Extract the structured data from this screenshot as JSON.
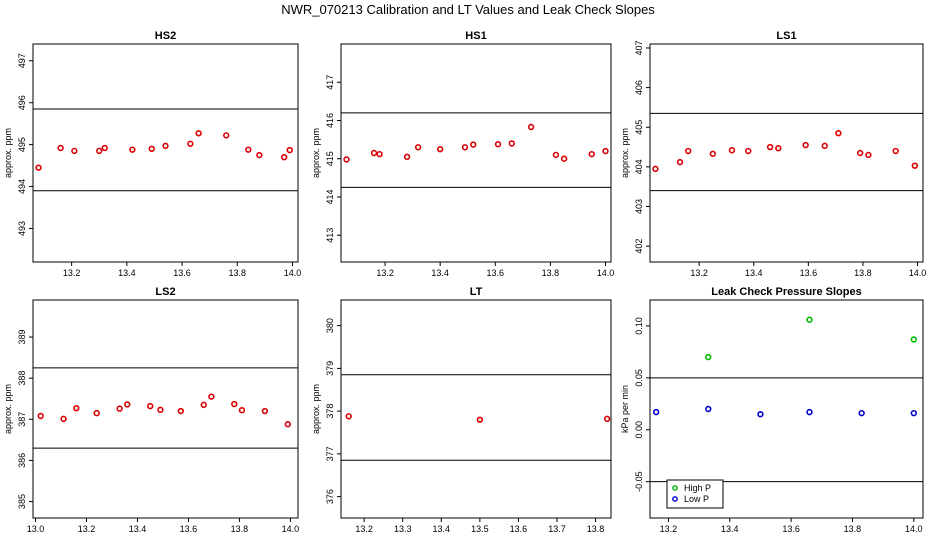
{
  "figure_title": "NWR_070213  Calibration and LT Values and Leak Check Slopes",
  "chart_data": [
    {
      "type": "scatter",
      "title": "HS2",
      "ylabel": "approx. ppm",
      "xlim": [
        13.06,
        14.02
      ],
      "ylim": [
        492.2,
        497.4
      ],
      "xticks": [
        13.2,
        13.4,
        13.6,
        13.8,
        14.0
      ],
      "xtick_labels": [
        "13.2",
        "13.4",
        "13.6",
        "13.8",
        "14.0"
      ],
      "yticks": [
        493,
        494,
        495,
        496,
        497
      ],
      "ytick_labels": [
        "493",
        "494",
        "495",
        "496",
        "497"
      ],
      "hlines": [
        495.85,
        493.9
      ],
      "series": [
        {
          "color": "#dd0000",
          "points": [
            [
              13.08,
              494.45
            ],
            [
              13.16,
              494.92
            ],
            [
              13.21,
              494.85
            ],
            [
              13.3,
              494.85
            ],
            [
              13.32,
              494.92
            ],
            [
              13.42,
              494.88
            ],
            [
              13.49,
              494.9
            ],
            [
              13.54,
              494.97
            ],
            [
              13.63,
              495.02
            ],
            [
              13.66,
              495.27
            ],
            [
              13.76,
              495.22
            ],
            [
              13.84,
              494.88
            ],
            [
              13.88,
              494.75
            ],
            [
              13.97,
              494.7
            ],
            [
              13.99,
              494.87
            ]
          ]
        }
      ]
    },
    {
      "type": "scatter",
      "title": "HS1",
      "ylabel": "approx. ppm",
      "xlim": [
        13.04,
        14.02
      ],
      "ylim": [
        412.3,
        418.0
      ],
      "xticks": [
        13.2,
        13.4,
        13.6,
        13.8,
        14.0
      ],
      "xtick_labels": [
        "13.2",
        "13.4",
        "13.6",
        "13.8",
        "14.0"
      ],
      "yticks": [
        413,
        414,
        415,
        416,
        417
      ],
      "ytick_labels": [
        "413",
        "414",
        "415",
        "416",
        "417"
      ],
      "hlines": [
        416.2,
        414.25
      ],
      "series": [
        {
          "color": "#dd0000",
          "points": [
            [
              13.06,
              414.98
            ],
            [
              13.16,
              415.15
            ],
            [
              13.18,
              415.12
            ],
            [
              13.28,
              415.05
            ],
            [
              13.32,
              415.3
            ],
            [
              13.4,
              415.25
            ],
            [
              13.49,
              415.3
            ],
            [
              13.52,
              415.37
            ],
            [
              13.61,
              415.38
            ],
            [
              13.66,
              415.4
            ],
            [
              13.73,
              415.83
            ],
            [
              13.82,
              415.1
            ],
            [
              13.85,
              415.0
            ],
            [
              13.95,
              415.12
            ],
            [
              14.0,
              415.2
            ]
          ]
        }
      ]
    },
    {
      "type": "scatter",
      "title": "LS1",
      "ylabel": "approx. ppm",
      "xlim": [
        13.02,
        14.02
      ],
      "ylim": [
        401.6,
        407.1
      ],
      "xticks": [
        13.2,
        13.4,
        13.6,
        13.8,
        14.0
      ],
      "xtick_labels": [
        "13.2",
        "13.4",
        "13.6",
        "13.8",
        "14.0"
      ],
      "yticks": [
        402,
        403,
        404,
        405,
        406,
        407
      ],
      "ytick_labels": [
        "402",
        "403",
        "404",
        "405",
        "406",
        "407"
      ],
      "hlines": [
        405.35,
        403.4
      ],
      "series": [
        {
          "color": "#dd0000",
          "points": [
            [
              13.04,
              403.95
            ],
            [
              13.13,
              404.12
            ],
            [
              13.16,
              404.4
            ],
            [
              13.25,
              404.33
            ],
            [
              13.32,
              404.42
            ],
            [
              13.38,
              404.4
            ],
            [
              13.46,
              404.5
            ],
            [
              13.49,
              404.47
            ],
            [
              13.59,
              404.55
            ],
            [
              13.66,
              404.53
            ],
            [
              13.71,
              404.85
            ],
            [
              13.79,
              404.35
            ],
            [
              13.82,
              404.3
            ],
            [
              13.92,
              404.4
            ],
            [
              13.99,
              404.03
            ]
          ]
        }
      ]
    },
    {
      "type": "scatter",
      "title": "LS2",
      "ylabel": "approx. ppm",
      "xlim": [
        12.99,
        14.03
      ],
      "ylim": [
        384.6,
        389.9
      ],
      "xticks": [
        13.0,
        13.2,
        13.4,
        13.6,
        13.8,
        14.0
      ],
      "xtick_labels": [
        "13.0",
        "13.2",
        "13.4",
        "13.6",
        "13.8",
        "14.0"
      ],
      "yticks": [
        385,
        386,
        387,
        388,
        389
      ],
      "ytick_labels": [
        "385",
        "386",
        "387",
        "388",
        "389"
      ],
      "hlines": [
        388.25,
        386.3
      ],
      "series": [
        {
          "color": "#dd0000",
          "points": [
            [
              13.02,
              387.08
            ],
            [
              13.11,
              387.01
            ],
            [
              13.16,
              387.27
            ],
            [
              13.24,
              387.15
            ],
            [
              13.33,
              387.26
            ],
            [
              13.36,
              387.36
            ],
            [
              13.45,
              387.32
            ],
            [
              13.49,
              387.23
            ],
            [
              13.57,
              387.2
            ],
            [
              13.66,
              387.35
            ],
            [
              13.69,
              387.55
            ],
            [
              13.78,
              387.37
            ],
            [
              13.81,
              387.22
            ],
            [
              13.9,
              387.2
            ],
            [
              13.99,
              386.88
            ]
          ]
        }
      ]
    },
    {
      "type": "scatter",
      "title": "LT",
      "ylabel": "approx. ppm",
      "xlim": [
        13.14,
        13.84
      ],
      "ylim": [
        375.5,
        380.6
      ],
      "xticks": [
        13.2,
        13.3,
        13.4,
        13.5,
        13.6,
        13.7,
        13.8
      ],
      "xtick_labels": [
        "13.2",
        "13.3",
        "13.4",
        "13.5",
        "13.6",
        "13.7",
        "13.8"
      ],
      "yticks": [
        376,
        377,
        378,
        379,
        380
      ],
      "ytick_labels": [
        "376",
        "377",
        "378",
        "379",
        "380"
      ],
      "hlines": [
        378.85,
        376.85
      ],
      "series": [
        {
          "color": "#dd0000",
          "points": [
            [
              13.16,
              377.88
            ],
            [
              13.5,
              377.8
            ],
            [
              13.83,
              377.82
            ]
          ]
        }
      ]
    },
    {
      "type": "scatter",
      "title": "Leak Check Pressure Slopes",
      "ylabel": "kPa per min",
      "xlim": [
        13.14,
        14.03
      ],
      "ylim": [
        -0.085,
        0.125
      ],
      "xticks": [
        13.2,
        13.4,
        13.6,
        13.8,
        14.0
      ],
      "xtick_labels": [
        "13.2",
        "13.4",
        "13.6",
        "13.8",
        "14.0"
      ],
      "yticks": [
        -0.05,
        0.0,
        0.05,
        0.1
      ],
      "ytick_labels": [
        "-0.05",
        "0.00",
        "0.05",
        "0.10"
      ],
      "hlines": [
        0.05,
        -0.05
      ],
      "legend": {
        "position": "bottom-left",
        "entries": [
          {
            "label": "High P",
            "color": "#00bb00"
          },
          {
            "label": "Low P",
            "color": "#0000cc"
          }
        ]
      },
      "series": [
        {
          "name": "High P",
          "color": "#00bb00",
          "points": [
            [
              13.33,
              0.07
            ],
            [
              13.66,
              0.106
            ],
            [
              14.0,
              0.087
            ]
          ]
        },
        {
          "name": "Low P",
          "color": "#0000cc",
          "points": [
            [
              13.16,
              0.017
            ],
            [
              13.33,
              0.02
            ],
            [
              13.5,
              0.015
            ],
            [
              13.66,
              0.017
            ],
            [
              13.83,
              0.016
            ],
            [
              14.0,
              0.016
            ]
          ]
        }
      ]
    }
  ]
}
